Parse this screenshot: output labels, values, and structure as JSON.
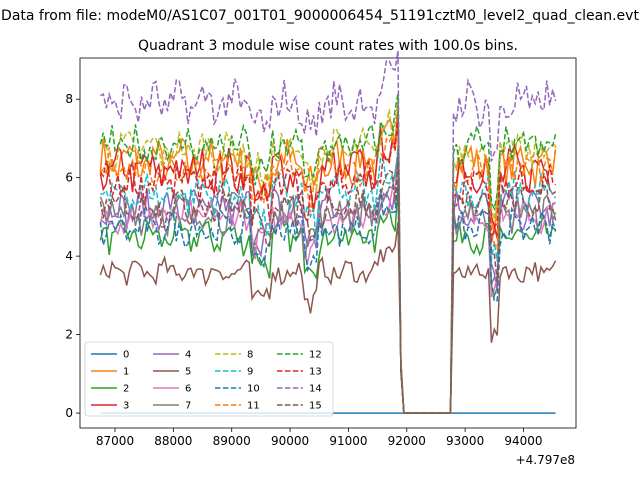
{
  "chart_data": {
    "type": "line",
    "suptitle": "Data from file: modeM0/AS1C07_001T01_9000006454_51191cztM0_level2_quad_clean.evt",
    "title": "Quadrant 3 module wise count rates with 100.0s bins.",
    "xlabel": "",
    "ylabel": "",
    "x_offset_label": "+4.797e8",
    "x_range": [
      86750,
      94550
    ],
    "xlim": [
      86400,
      94900
    ],
    "ylim": [
      -0.38,
      9.05
    ],
    "x_ticks": [
      87000,
      88000,
      89000,
      90000,
      91000,
      92000,
      93000,
      94000
    ],
    "y_ticks": [
      0,
      2,
      4,
      6,
      8
    ],
    "grid": false,
    "legend_loc": "lower left",
    "legend_ncol": 4,
    "gap": [
      91950,
      92800
    ],
    "series": [
      {
        "name": "0",
        "color": "#1f77b4",
        "dash": "solid",
        "mean": 0.0,
        "amp": 0.0
      },
      {
        "name": "1",
        "color": "#ff7f0e",
        "dash": "solid",
        "mean": 6.4,
        "amp": 0.45
      },
      {
        "name": "2",
        "color": "#2ca02c",
        "dash": "solid",
        "mean": 4.5,
        "amp": 0.35
      },
      {
        "name": "3",
        "color": "#d62728",
        "dash": "solid",
        "mean": 6.2,
        "amp": 0.45
      },
      {
        "name": "4",
        "color": "#9467bd",
        "dash": "solid",
        "mean": 5.2,
        "amp": 0.4
      },
      {
        "name": "5",
        "color": "#8c564b",
        "dash": "solid",
        "mean": 3.6,
        "amp": 0.25
      },
      {
        "name": "6",
        "color": "#e377c2",
        "dash": "solid",
        "mean": 5.0,
        "amp": 0.35
      },
      {
        "name": "7",
        "color": "#7f7f7f",
        "dash": "solid",
        "mean": 5.1,
        "amp": 0.4
      },
      {
        "name": "8",
        "color": "#bcbd22",
        "dash": "dashed",
        "mean": 6.7,
        "amp": 0.4
      },
      {
        "name": "9",
        "color": "#17becf",
        "dash": "dashed",
        "mean": 5.6,
        "amp": 0.4
      },
      {
        "name": "10",
        "color": "#1f77b4",
        "dash": "dashed",
        "mean": 4.7,
        "amp": 0.35
      },
      {
        "name": "11",
        "color": "#ff7f0e",
        "dash": "dashed",
        "mean": 6.3,
        "amp": 0.4
      },
      {
        "name": "12",
        "color": "#2ca02c",
        "dash": "dashed",
        "mean": 6.8,
        "amp": 0.4
      },
      {
        "name": "13",
        "color": "#d62728",
        "dash": "dashed",
        "mean": 5.9,
        "amp": 0.4
      },
      {
        "name": "14",
        "color": "#9467bd",
        "dash": "dashed",
        "mean": 7.9,
        "amp": 0.45
      },
      {
        "name": "15",
        "color": "#8c564b",
        "dash": "dashed",
        "mean": 5.3,
        "amp": 0.4
      }
    ]
  }
}
